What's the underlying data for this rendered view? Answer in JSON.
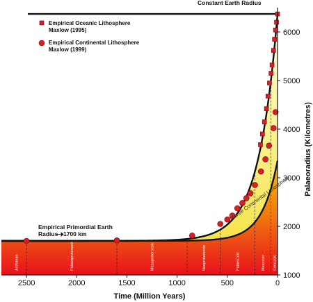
{
  "chart_data": {
    "type": "line",
    "title": "Constant Earth Radius",
    "xlabel": "Time (Million Years)",
    "ylabel": "Palaeoradius (Kilometres)",
    "xlim": [
      2750,
      0
    ],
    "ylim": [
      1000,
      6500
    ],
    "x_ticks": [
      2500,
      2000,
      1500,
      1000,
      500,
      0
    ],
    "y_ticks": [
      1000,
      2000,
      3000,
      4000,
      5000,
      6000
    ],
    "legend_placement": "top-left",
    "constant_radius_km": 6370,
    "primordial_radius_km": 1700,
    "annotations": {
      "constant_radius": "Constant Earth Radius",
      "primordial_line1": "Empirical Primordial Earth",
      "primordial_line2": "Radius",
      "primordial_value": "1700 km",
      "curve_label": "Mantle Continental Lithosphere"
    },
    "legend": [
      {
        "marker": "square",
        "line1": "Empirical Oceanic Lithosphere",
        "line2": "Maxlow (1995)"
      },
      {
        "marker": "circle",
        "line1": "Empirical Continental Lithosphere",
        "line2": "Maxlow (1999)"
      }
    ],
    "eras": [
      {
        "name": "Archaean",
        "boundary": 2500,
        "center": 2600
      },
      {
        "name": "Palaeoproterozoic",
        "boundary": 1600,
        "center": 2050
      },
      {
        "name": "Mesoproterozoic",
        "boundary": 900,
        "center": 1250
      },
      {
        "name": "Neoproterozoic",
        "boundary": 570,
        "center": 735
      },
      {
        "name": "Palaeozoic",
        "boundary": 225,
        "center": 398
      },
      {
        "name": "Mesozoic",
        "boundary": 65,
        "center": 145
      },
      {
        "name": "Cenozoic",
        "boundary": 0,
        "center": 32
      }
    ],
    "series": [
      {
        "name": "Empirical Continental Lithosphere",
        "marker": "circle",
        "points": [
          [
            2500,
            1700
          ],
          [
            1600,
            1710
          ],
          [
            850,
            1810
          ],
          [
            570,
            2050
          ],
          [
            500,
            2140
          ],
          [
            450,
            2220
          ],
          [
            400,
            2370
          ],
          [
            350,
            2480
          ],
          [
            310,
            2580
          ],
          [
            270,
            2680
          ],
          [
            225,
            2850
          ],
          [
            165,
            3130
          ],
          [
            120,
            3380
          ],
          [
            85,
            3660
          ],
          [
            40,
            4020
          ],
          [
            20,
            4350
          ]
        ]
      },
      {
        "name": "Empirical Oceanic Lithosphere",
        "marker": "square",
        "points": [
          [
            170,
            3680
          ],
          [
            150,
            3900
          ],
          [
            130,
            4150
          ],
          [
            110,
            4420
          ],
          [
            95,
            4680
          ],
          [
            80,
            4950
          ],
          [
            65,
            5150
          ],
          [
            55,
            5320
          ],
          [
            40,
            5620
          ],
          [
            30,
            5850
          ],
          [
            20,
            6040
          ],
          [
            10,
            6200
          ],
          [
            0,
            6370
          ]
        ]
      }
    ]
  }
}
